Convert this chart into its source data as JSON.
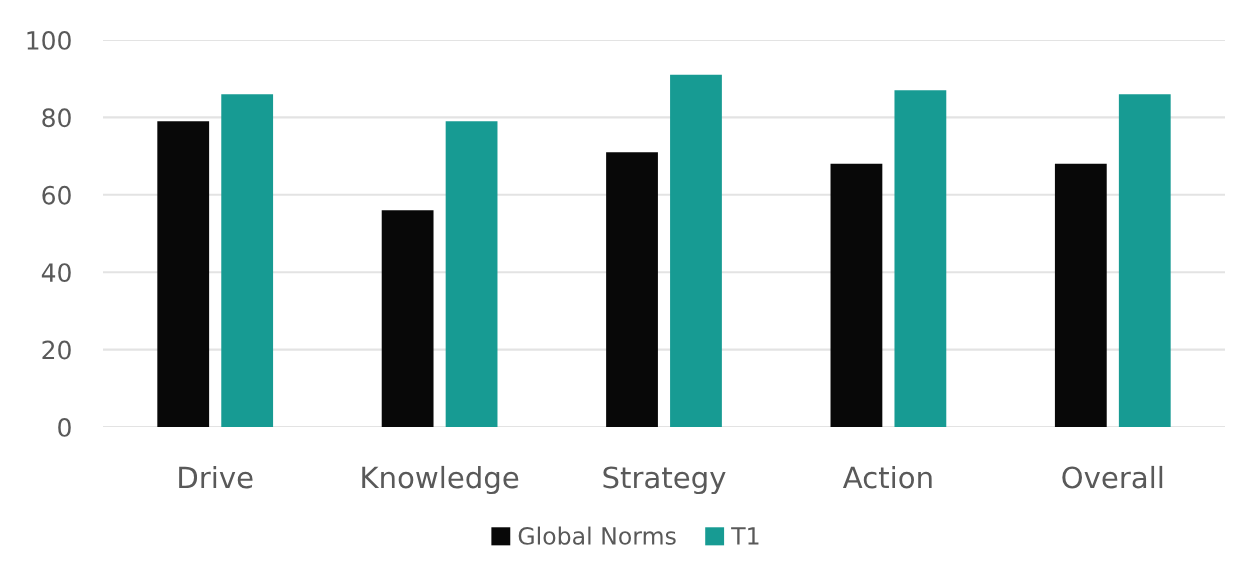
{
  "chart_data": {
    "type": "bar",
    "categories": [
      "Drive",
      "Knowledge",
      "Strategy",
      "Action",
      "Overall"
    ],
    "series": [
      {
        "name": "Global Norms",
        "color": "#080808",
        "values": [
          79,
          56,
          71,
          68,
          68
        ]
      },
      {
        "name": "T1",
        "color": "#179b93",
        "values": [
          86,
          79,
          91,
          87,
          86
        ]
      }
    ],
    "ylim": [
      0,
      100
    ],
    "yticks": [
      0,
      20,
      40,
      60,
      80,
      100
    ],
    "grid": "y",
    "legend": "bottom"
  }
}
